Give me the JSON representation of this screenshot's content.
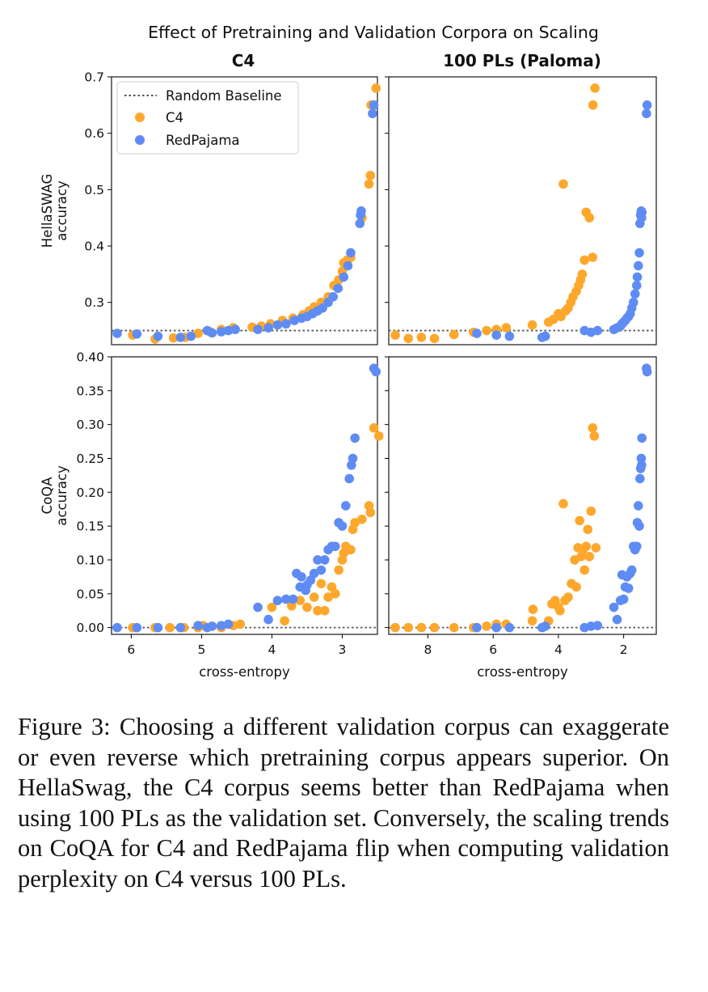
{
  "figure": {
    "suptitle": "Effect of Pretraining and Validation Corpora on Scaling",
    "colors": {
      "c4": "#fda72c",
      "redpajama": "#5f8cf4",
      "baseline": "#555555"
    },
    "legend": {
      "baseline_label": "Random Baseline",
      "c4_label": "C4",
      "redpajama_label": "RedPajama",
      "placement": "upper-left of top-left panel"
    }
  },
  "chart_data": [
    {
      "type": "scatter",
      "title": "C4",
      "xlabel": "",
      "ylabel": "HellaSWAG\naccuracy",
      "xlim": [
        6.28,
        2.5
      ],
      "xaxis_inverted": true,
      "ylim": [
        0.225,
        0.7
      ],
      "xticks": [],
      "yticks": [
        0.3,
        0.4,
        0.5,
        0.6,
        0.7
      ],
      "ytick_labels": [
        "0.3",
        "0.4",
        "0.5",
        "0.6",
        "0.7"
      ],
      "baseline": 0.25,
      "series": [
        {
          "name": "C4",
          "x": [
            5.98,
            5.66,
            5.4,
            5.23,
            5.05,
            4.88,
            4.72,
            4.55,
            4.28,
            4.15,
            4.02,
            3.85,
            3.7,
            3.56,
            3.47,
            3.4,
            3.3,
            3.2,
            3.12,
            3.05,
            3.0,
            2.98,
            2.93,
            2.88,
            2.72,
            2.62,
            2.6,
            2.59,
            2.52
          ],
          "y": [
            0.242,
            0.235,
            0.237,
            0.238,
            0.245,
            0.248,
            0.252,
            0.255,
            0.256,
            0.258,
            0.262,
            0.268,
            0.272,
            0.278,
            0.285,
            0.292,
            0.3,
            0.31,
            0.33,
            0.34,
            0.355,
            0.37,
            0.375,
            0.38,
            0.45,
            0.51,
            0.525,
            0.65,
            0.68
          ]
        },
        {
          "name": "RedPajama",
          "x": [
            6.2,
            5.92,
            5.62,
            5.3,
            5.15,
            4.92,
            4.85,
            4.72,
            4.62,
            4.52,
            4.2,
            4.05,
            3.92,
            3.8,
            3.68,
            3.58,
            3.5,
            3.42,
            3.35,
            3.28,
            3.2,
            3.13,
            3.06,
            2.98,
            2.92,
            2.88,
            2.75,
            2.74,
            2.73,
            2.57,
            2.55
          ],
          "y": [
            0.245,
            0.244,
            0.24,
            0.238,
            0.24,
            0.25,
            0.246,
            0.248,
            0.25,
            0.252,
            0.252,
            0.255,
            0.26,
            0.262,
            0.268,
            0.272,
            0.275,
            0.28,
            0.285,
            0.29,
            0.3,
            0.31,
            0.325,
            0.345,
            0.365,
            0.388,
            0.44,
            0.455,
            0.462,
            0.635,
            0.65
          ]
        }
      ]
    },
    {
      "type": "scatter",
      "title": "100 PLs (Paloma)",
      "xlabel": "",
      "ylabel": "",
      "xlim": [
        9.2,
        1.0
      ],
      "xaxis_inverted": true,
      "ylim": [
        0.225,
        0.7
      ],
      "xticks": [],
      "yticks": [
        0.3,
        0.4,
        0.5,
        0.6,
        0.7
      ],
      "ytick_labels": [
        "",
        "",
        "",
        "",
        ""
      ],
      "baseline": 0.25,
      "series": [
        {
          "name": "C4",
          "x": [
            9.0,
            8.6,
            8.2,
            7.8,
            7.2,
            6.6,
            6.2,
            5.9,
            5.6,
            4.8,
            4.3,
            4.15,
            4.0,
            3.92,
            3.85,
            3.78,
            3.7,
            3.62,
            3.55,
            3.45,
            3.38,
            3.32,
            3.27,
            3.2,
            3.15,
            3.05,
            2.95,
            2.94,
            2.88
          ],
          "y": [
            0.242,
            0.236,
            0.238,
            0.236,
            0.243,
            0.247,
            0.25,
            0.252,
            0.255,
            0.26,
            0.265,
            0.27,
            0.28,
            0.275,
            0.51,
            0.285,
            0.29,
            0.3,
            0.31,
            0.32,
            0.33,
            0.34,
            0.35,
            0.375,
            0.46,
            0.45,
            0.38,
            0.65,
            0.68
          ]
        },
        {
          "name": "RedPajama",
          "x": [
            6.5,
            5.9,
            5.5,
            4.5,
            4.4,
            3.2,
            3.0,
            2.8,
            2.3,
            2.2,
            2.1,
            2.05,
            2.0,
            1.95,
            1.9,
            1.85,
            1.8,
            1.75,
            1.7,
            1.65,
            1.6,
            1.58,
            1.55,
            1.52,
            1.5,
            1.48,
            1.46,
            1.45,
            1.44,
            1.3,
            1.28
          ],
          "y": [
            0.245,
            0.242,
            0.24,
            0.238,
            0.24,
            0.25,
            0.247,
            0.25,
            0.252,
            0.255,
            0.258,
            0.262,
            0.265,
            0.268,
            0.272,
            0.275,
            0.28,
            0.29,
            0.3,
            0.315,
            0.33,
            0.345,
            0.365,
            0.388,
            0.44,
            0.455,
            0.462,
            0.45,
            0.46,
            0.635,
            0.65
          ]
        }
      ]
    },
    {
      "type": "scatter",
      "title": "",
      "xlabel": "cross-entropy",
      "ylabel": "CoQA\naccuracy",
      "xlim": [
        6.28,
        2.5
      ],
      "xaxis_inverted": true,
      "ylim": [
        -0.01,
        0.4
      ],
      "xticks": [
        6,
        5,
        4,
        3
      ],
      "xtick_labels": [
        "6",
        "5",
        "4",
        "3"
      ],
      "yticks": [
        0,
        0.05,
        0.1,
        0.15,
        0.2,
        0.25,
        0.3,
        0.35,
        0.4
      ],
      "ytick_labels": [
        "0.00",
        "0.05",
        "0.10",
        "0.15",
        "0.20",
        "0.25",
        "0.30",
        "0.35",
        "0.40"
      ],
      "baseline": 0.0,
      "series": [
        {
          "name": "C4",
          "x": [
            5.98,
            5.66,
            5.45,
            5.25,
            5.05,
            4.98,
            4.72,
            4.55,
            4.45,
            4.0,
            3.82,
            3.72,
            3.6,
            3.5,
            3.4,
            3.35,
            3.3,
            3.25,
            3.2,
            3.15,
            3.1,
            3.05,
            3.0,
            2.98,
            2.95,
            2.92,
            2.88,
            2.85,
            2.82,
            2.72,
            2.62,
            2.6,
            2.55,
            2.48
          ],
          "y": [
            0.0,
            0.0,
            0.0,
            0.0,
            0.0,
            0.003,
            0.0,
            0.003,
            0.005,
            0.03,
            0.01,
            0.032,
            0.04,
            0.03,
            0.045,
            0.025,
            0.065,
            0.025,
            0.045,
            0.06,
            0.05,
            0.085,
            0.1,
            0.11,
            0.12,
            0.115,
            0.115,
            0.145,
            0.155,
            0.16,
            0.18,
            0.17,
            0.295,
            0.283
          ]
        },
        {
          "name": "RedPajama",
          "x": [
            6.2,
            5.92,
            5.62,
            5.3,
            5.05,
            4.92,
            4.85,
            4.72,
            4.62,
            4.2,
            4.05,
            3.92,
            3.8,
            3.7,
            3.65,
            3.6,
            3.58,
            3.52,
            3.5,
            3.45,
            3.4,
            3.35,
            3.3,
            3.25,
            3.2,
            3.15,
            3.1,
            3.05,
            3.0,
            2.95,
            2.9,
            2.87,
            2.85,
            2.82,
            2.55,
            2.52
          ],
          "y": [
            0.0,
            0.0,
            0.0,
            0.0,
            0.003,
            0.0,
            0.002,
            0.003,
            0.005,
            0.03,
            0.012,
            0.04,
            0.042,
            0.042,
            0.08,
            0.06,
            0.075,
            0.055,
            0.063,
            0.07,
            0.08,
            0.1,
            0.085,
            0.1,
            0.115,
            0.12,
            0.12,
            0.155,
            0.15,
            0.18,
            0.22,
            0.24,
            0.25,
            0.28,
            0.383,
            0.378
          ]
        }
      ]
    },
    {
      "type": "scatter",
      "title": "",
      "xlabel": "cross-entropy",
      "ylabel": "",
      "xlim": [
        9.2,
        1.0
      ],
      "xaxis_inverted": true,
      "ylim": [
        -0.01,
        0.4
      ],
      "xticks": [
        8,
        6,
        4,
        2
      ],
      "xtick_labels": [
        "8",
        "6",
        "4",
        "2"
      ],
      "yticks": [
        0,
        0.05,
        0.1,
        0.15,
        0.2,
        0.25,
        0.3,
        0.35,
        0.4
      ],
      "ytick_labels": [
        "",
        "",
        "",
        "",
        "",
        "",
        "",
        "",
        ""
      ],
      "baseline": 0.0,
      "series": [
        {
          "name": "C4",
          "x": [
            9.0,
            8.6,
            8.2,
            7.8,
            7.2,
            6.6,
            6.2,
            5.9,
            5.6,
            4.8,
            4.78,
            4.3,
            4.2,
            4.1,
            4.0,
            3.95,
            3.85,
            3.8,
            3.7,
            3.6,
            3.5,
            3.45,
            3.4,
            3.35,
            3.3,
            3.25,
            3.2,
            3.15,
            3.1,
            3.05,
            3.0,
            2.95,
            2.9,
            2.85
          ],
          "y": [
            0.0,
            0.0,
            0.0,
            0.0,
            0.0,
            0.0,
            0.002,
            0.005,
            0.005,
            0.01,
            0.027,
            0.01,
            0.035,
            0.04,
            0.03,
            0.025,
            0.183,
            0.04,
            0.045,
            0.065,
            0.1,
            0.06,
            0.118,
            0.158,
            0.105,
            0.115,
            0.085,
            0.12,
            0.145,
            0.105,
            0.172,
            0.295,
            0.283,
            0.118
          ]
        },
        {
          "name": "RedPajama",
          "x": [
            6.5,
            5.9,
            5.5,
            4.5,
            4.4,
            3.2,
            3.0,
            2.8,
            2.3,
            2.2,
            2.1,
            2.05,
            2.0,
            1.95,
            1.9,
            1.85,
            1.8,
            1.75,
            1.7,
            1.65,
            1.6,
            1.58,
            1.55,
            1.52,
            1.5,
            1.48,
            1.46,
            1.45,
            1.44,
            1.3,
            1.28
          ],
          "y": [
            0.0,
            0.0,
            0.0,
            0.0,
            0.002,
            0.0,
            0.002,
            0.003,
            0.03,
            0.012,
            0.04,
            0.078,
            0.042,
            0.06,
            0.075,
            0.058,
            0.08,
            0.085,
            0.12,
            0.115,
            0.12,
            0.155,
            0.18,
            0.15,
            0.22,
            0.235,
            0.25,
            0.24,
            0.28,
            0.383,
            0.378
          ]
        }
      ]
    }
  ],
  "caption": {
    "text": "Figure 3: Choosing a different validation corpus can exaggerate or even reverse which pretraining corpus appears superior. On HellaSwag, the C4 corpus seems better than RedPajama when using 100 PLs as the vali­dation set.  Conversely, the scaling trends on CoQA for C4 and RedPajama flip when computing validation perplexity on C4 versus 100 PLs."
  }
}
